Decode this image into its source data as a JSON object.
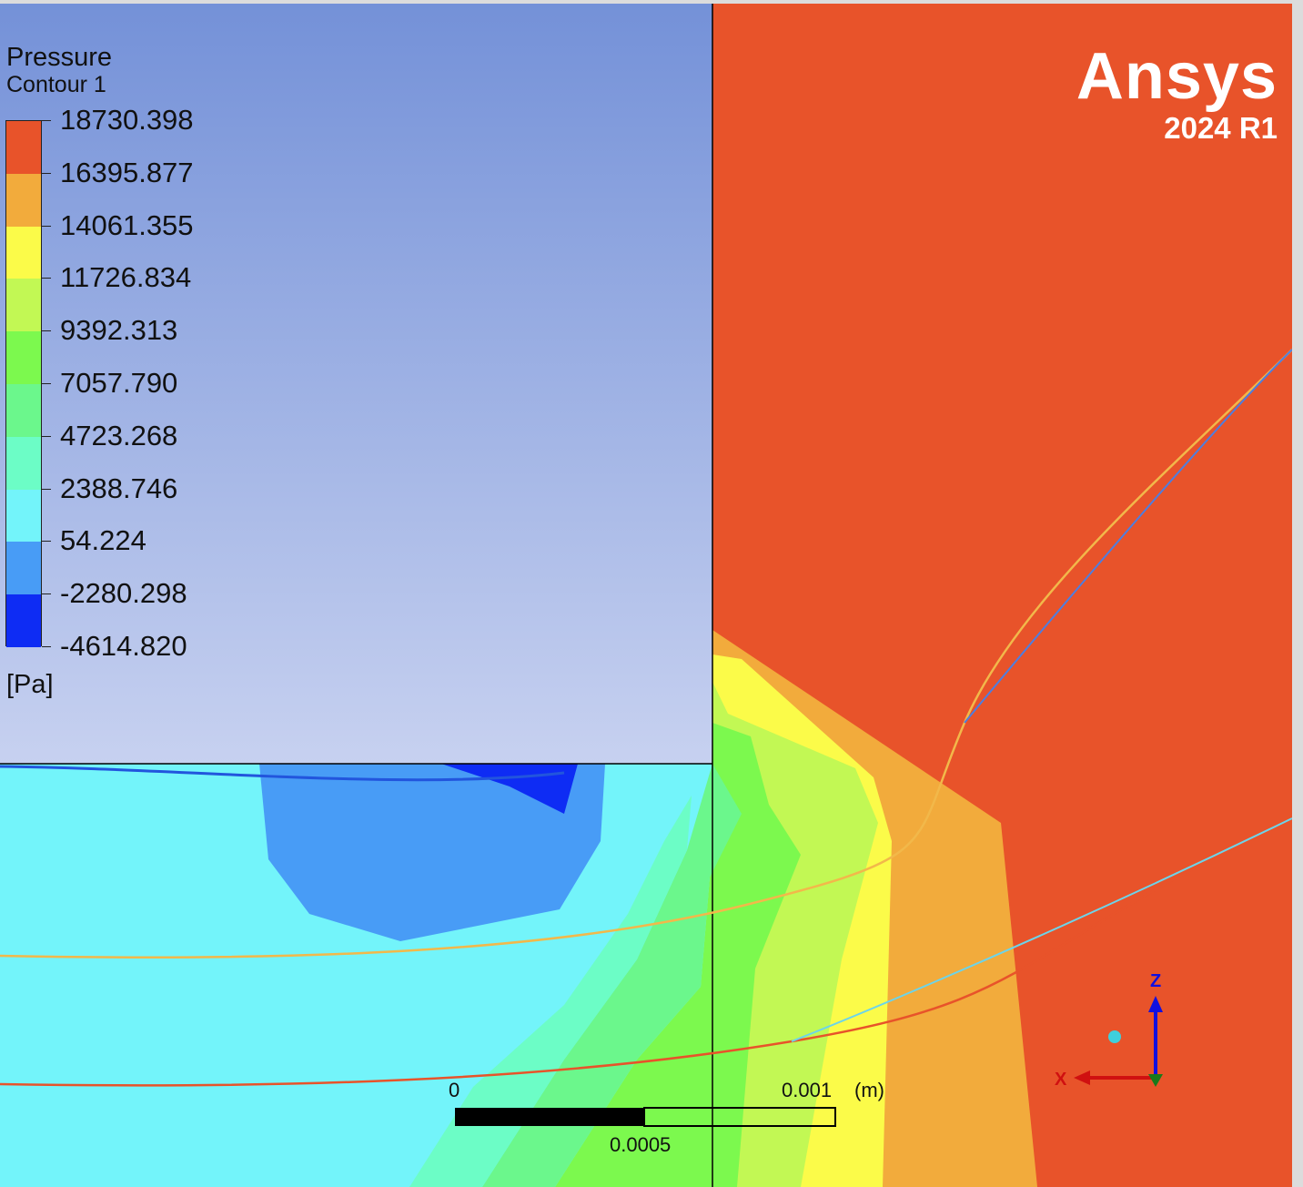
{
  "legend": {
    "title": "Pressure",
    "subtitle": "Contour 1",
    "units": "[Pa]",
    "levels": [
      "18730.398",
      "16395.877",
      "14061.355",
      "11726.834",
      "9392.313",
      "7057.790",
      "4723.268",
      "2388.746",
      "54.224",
      "-2280.298",
      "-4614.820"
    ],
    "band_colors": [
      "#e8532a",
      "#f2ab3c",
      "#fbfb49",
      "#c2f854",
      "#7cf94e",
      "#6bf78c",
      "#6cfdc6",
      "#73f4fa",
      "#489cf6",
      "#0e2cf4"
    ]
  },
  "brand": {
    "name": "Ansys",
    "version": "2024 R1"
  },
  "scale_bar": {
    "start_label": "0",
    "end_label": "0.001",
    "unit_label": "(m)",
    "mid_label": "0.0005"
  },
  "triad": {
    "z_label": "Z",
    "x_label": "X",
    "z_color": "#1010e0",
    "x_color": "#d01010",
    "y_color": "#1a7a1a"
  },
  "background": {
    "top": "#7491d8",
    "bottom": "#c7d1f0"
  }
}
